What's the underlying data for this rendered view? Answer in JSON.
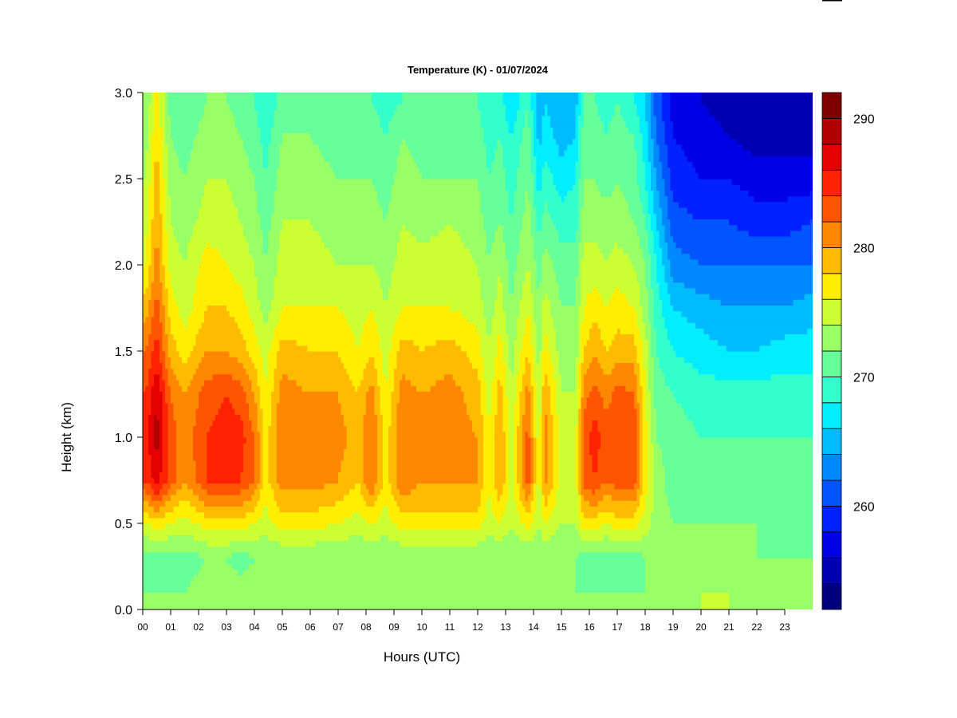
{
  "chart_data": {
    "type": "heatmap",
    "title": "Temperature (K) - 01/07/2024",
    "xlabel": "Hours (UTC)",
    "ylabel": "Height (km)",
    "xlim": [
      0,
      24
    ],
    "ylim": [
      0,
      3
    ],
    "x_ticks": [
      {
        "value": 0,
        "label": "00"
      },
      {
        "value": 1,
        "label": "01"
      },
      {
        "value": 2,
        "label": "02"
      },
      {
        "value": 3,
        "label": "03"
      },
      {
        "value": 4,
        "label": "04"
      },
      {
        "value": 5,
        "label": "05"
      },
      {
        "value": 6,
        "label": "06"
      },
      {
        "value": 7,
        "label": "07"
      },
      {
        "value": 8,
        "label": "08"
      },
      {
        "value": 9,
        "label": "09"
      },
      {
        "value": 10,
        "label": "10"
      },
      {
        "value": 11,
        "label": "11"
      },
      {
        "value": 12,
        "label": "12"
      },
      {
        "value": 13,
        "label": "13"
      },
      {
        "value": 14,
        "label": "14"
      },
      {
        "value": 15,
        "label": "15"
      },
      {
        "value": 16,
        "label": "16"
      },
      {
        "value": 17,
        "label": "17"
      },
      {
        "value": 18,
        "label": "18"
      },
      {
        "value": 19,
        "label": "19"
      },
      {
        "value": 20,
        "label": "20"
      },
      {
        "value": 21,
        "label": "21"
      },
      {
        "value": 22,
        "label": "22"
      },
      {
        "value": 23,
        "label": "23"
      }
    ],
    "y_ticks": [
      {
        "value": 0.0,
        "label": "0.0"
      },
      {
        "value": 0.5,
        "label": "0.5"
      },
      {
        "value": 1.0,
        "label": "1.0"
      },
      {
        "value": 1.5,
        "label": "1.5"
      },
      {
        "value": 2.0,
        "label": "2.0"
      },
      {
        "value": 2.5,
        "label": "2.5"
      },
      {
        "value": 3.0,
        "label": "3.0"
      }
    ],
    "colorbar": {
      "range": [
        252,
        292
      ],
      "levels": [
        252,
        254,
        256,
        258,
        260,
        262,
        264,
        266,
        268,
        270,
        272,
        274,
        276,
        278,
        280,
        282,
        284,
        286,
        288,
        290,
        292
      ],
      "colors": [
        "#00007f",
        "#0000b2",
        "#0000e5",
        "#0021ff",
        "#0055ff",
        "#0088ff",
        "#00bbff",
        "#00eeff",
        "#33ffcc",
        "#66ff99",
        "#99ff66",
        "#ccff33",
        "#ffee00",
        "#ffbb00",
        "#ff8800",
        "#ff5500",
        "#ff2200",
        "#e50000",
        "#b20000",
        "#7f0000"
      ],
      "ticks": [
        {
          "value": 260,
          "label": "260"
        },
        {
          "value": 270,
          "label": "270"
        },
        {
          "value": 280,
          "label": "280"
        },
        {
          "value": 290,
          "label": "290"
        }
      ]
    },
    "grid": false,
    "heights_km": [
      0.1,
      0.3,
      0.5,
      0.75,
      1.0,
      1.25,
      1.5,
      1.75,
      2.0,
      2.25,
      2.5,
      2.75,
      2.95
    ],
    "columns": [
      {
        "hour": 0.1,
        "temps": [
          272,
          271,
          276,
          284,
          285,
          284,
          282,
          279,
          276,
          275,
          274,
          273,
          272
        ]
      },
      {
        "hour": 0.5,
        "temps": [
          272,
          271,
          277,
          287,
          289,
          288,
          285,
          283,
          281,
          280,
          279,
          278,
          277
        ]
      },
      {
        "hour": 1.0,
        "temps": [
          272,
          271,
          276,
          283,
          283,
          282,
          279,
          277,
          275,
          274,
          273,
          272,
          271
        ]
      },
      {
        "hour": 1.5,
        "temps": [
          272,
          271,
          275,
          280,
          281,
          280,
          277,
          275,
          274,
          273,
          272,
          271,
          270
        ]
      },
      {
        "hour": 2.3,
        "temps": [
          273,
          272,
          277,
          284,
          284,
          283,
          280,
          278,
          277,
          275,
          274,
          273,
          272
        ]
      },
      {
        "hour": 3.0,
        "temps": [
          273,
          272,
          277,
          284,
          285,
          284,
          280,
          278,
          276,
          275,
          274,
          273,
          272
        ]
      },
      {
        "hour": 3.5,
        "temps": [
          273,
          271,
          277,
          284,
          285,
          283,
          279,
          277,
          275,
          274,
          273,
          272,
          271
        ]
      },
      {
        "hour": 4.0,
        "temps": [
          273,
          272,
          276,
          282,
          282,
          280,
          277,
          275,
          274,
          273,
          272,
          271,
          270
        ]
      },
      {
        "hour": 4.4,
        "temps": [
          273,
          272,
          275,
          277,
          277,
          276,
          275,
          273,
          272,
          271,
          270,
          269,
          268
        ]
      },
      {
        "hour": 5.0,
        "temps": [
          273,
          272,
          277,
          281,
          282,
          281,
          279,
          276,
          275,
          274,
          273,
          272,
          271
        ]
      },
      {
        "hour": 6.0,
        "temps": [
          273,
          272,
          277,
          281,
          281,
          280,
          278,
          276,
          275,
          274,
          273,
          272,
          271
        ]
      },
      {
        "hour": 7.0,
        "temps": [
          273,
          272,
          276,
          280,
          281,
          280,
          278,
          276,
          274,
          273,
          272,
          271,
          270
        ]
      },
      {
        "hour": 7.7,
        "temps": [
          273,
          272,
          275,
          278,
          279,
          278,
          276,
          275,
          274,
          273,
          272,
          271,
          270
        ]
      },
      {
        "hour": 8.2,
        "temps": [
          273,
          272,
          276,
          282,
          282,
          281,
          278,
          276,
          274,
          273,
          272,
          271,
          270
        ]
      },
      {
        "hour": 8.7,
        "temps": [
          273,
          272,
          275,
          277,
          277,
          276,
          275,
          274,
          273,
          272,
          271,
          270,
          269
        ]
      },
      {
        "hour": 9.3,
        "temps": [
          273,
          272,
          277,
          282,
          282,
          281,
          279,
          276,
          275,
          274,
          273,
          272,
          270
        ]
      },
      {
        "hour": 10.0,
        "temps": [
          273,
          272,
          277,
          280,
          281,
          280,
          278,
          276,
          275,
          273,
          272,
          271,
          270
        ]
      },
      {
        "hour": 11.0,
        "temps": [
          273,
          272,
          277,
          280,
          281,
          281,
          279,
          276,
          275,
          274,
          272,
          271,
          270
        ]
      },
      {
        "hour": 12.0,
        "temps": [
          273,
          272,
          277,
          280,
          280,
          279,
          277,
          275,
          274,
          273,
          272,
          271,
          270
        ]
      },
      {
        "hour": 12.4,
        "temps": [
          273,
          272,
          275,
          276,
          276,
          275,
          274,
          273,
          272,
          271,
          270,
          269,
          268
        ]
      },
      {
        "hour": 12.8,
        "temps": [
          273,
          272,
          276,
          280,
          280,
          279,
          277,
          275,
          274,
          272,
          271,
          270,
          269
        ]
      },
      {
        "hour": 13.2,
        "temps": [
          273,
          272,
          274,
          275,
          275,
          274,
          273,
          272,
          271,
          270,
          269,
          268,
          266
        ]
      },
      {
        "hour": 13.8,
        "temps": [
          273,
          272,
          277,
          283,
          283,
          281,
          278,
          276,
          274,
          273,
          272,
          271,
          270
        ]
      },
      {
        "hour": 14.2,
        "temps": [
          273,
          272,
          274,
          275,
          275,
          274,
          273,
          272,
          271,
          269,
          267,
          265,
          264
        ]
      },
      {
        "hour": 14.4,
        "temps": [
          273,
          272,
          276,
          281,
          281,
          280,
          277,
          275,
          273,
          271,
          269,
          267,
          266
        ]
      },
      {
        "hour": 15.0,
        "temps": [
          272,
          272,
          274,
          275,
          275,
          274,
          273,
          272,
          271,
          269,
          267,
          265,
          264
        ]
      },
      {
        "hour": 15.5,
        "temps": [
          272,
          272,
          274,
          275,
          275,
          274,
          273,
          272,
          271,
          269,
          268,
          266,
          265
        ]
      },
      {
        "hour": 15.8,
        "temps": [
          272,
          271,
          277,
          283,
          283,
          281,
          278,
          276,
          275,
          273,
          272,
          271,
          270
        ]
      },
      {
        "hour": 16.2,
        "temps": [
          272,
          271,
          277,
          284,
          285,
          283,
          280,
          277,
          275,
          273,
          272,
          271,
          270
        ]
      },
      {
        "hour": 16.6,
        "temps": [
          272,
          271,
          276,
          282,
          283,
          281,
          278,
          276,
          274,
          273,
          271,
          270,
          269
        ]
      },
      {
        "hour": 17.0,
        "temps": [
          272,
          271,
          277,
          283,
          284,
          283,
          279,
          277,
          275,
          273,
          272,
          271,
          270
        ]
      },
      {
        "hour": 17.6,
        "temps": [
          272,
          271,
          277,
          283,
          284,
          282,
          279,
          276,
          274,
          272,
          271,
          270,
          268
        ]
      },
      {
        "hour": 18.0,
        "temps": [
          272,
          272,
          275,
          277,
          277,
          276,
          275,
          273,
          272,
          270,
          268,
          267,
          266
        ]
      },
      {
        "hour": 18.4,
        "temps": [
          273,
          272,
          273,
          273,
          272,
          271,
          270,
          269,
          268,
          266,
          264,
          262,
          261
        ]
      },
      {
        "hour": 19.0,
        "temps": [
          273,
          272,
          272,
          271,
          271,
          270,
          268,
          266,
          263,
          261,
          259,
          258,
          257
        ]
      },
      {
        "hour": 20.0,
        "temps": [
          274,
          272,
          272,
          271,
          270,
          269,
          267,
          265,
          262,
          260,
          258,
          257,
          256
        ]
      },
      {
        "hour": 21.0,
        "temps": [
          274,
          272,
          272,
          271,
          270,
          269,
          266,
          264,
          262,
          260,
          258,
          256,
          255
        ]
      },
      {
        "hour": 22.0,
        "temps": [
          273,
          272,
          272,
          271,
          270,
          269,
          266,
          264,
          262,
          259,
          257,
          255,
          254
        ]
      },
      {
        "hour": 23.0,
        "temps": [
          273,
          272,
          271,
          271,
          270,
          269,
          267,
          264,
          262,
          259,
          257,
          255,
          254
        ]
      },
      {
        "hour": 23.9,
        "temps": [
          273,
          272,
          271,
          271,
          270,
          269,
          267,
          265,
          262,
          260,
          257,
          255,
          254
        ]
      }
    ]
  }
}
